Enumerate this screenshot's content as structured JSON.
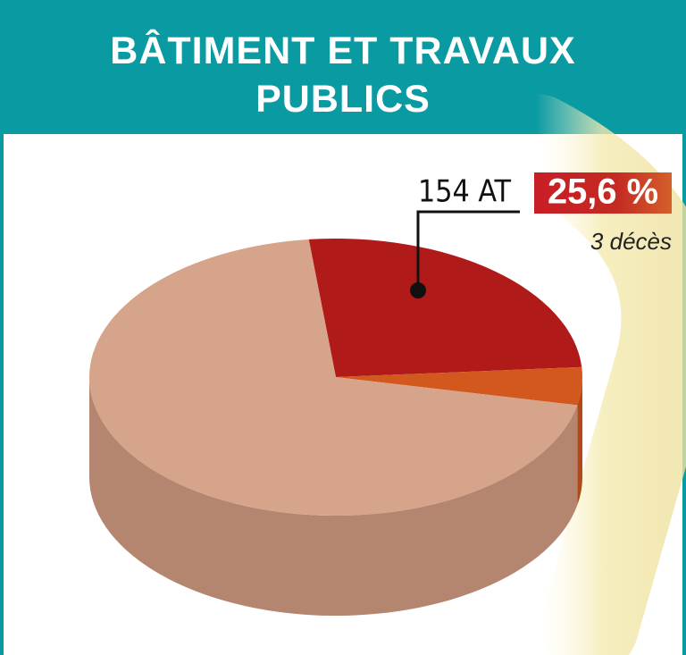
{
  "chart_data": {
    "type": "pie",
    "title": "BÂTIMENT ET TRAVAUX PUBLICS",
    "categories": [
      null,
      null,
      null
    ],
    "values": [
      25.6,
      4.4,
      70
    ],
    "value_labels": [
      "25,6 %",
      null,
      null
    ],
    "colors": [
      "#b01a18",
      "#d3581d",
      "#d6a48a"
    ],
    "annotations": [
      "154 AT",
      "3 décès"
    ]
  }
}
